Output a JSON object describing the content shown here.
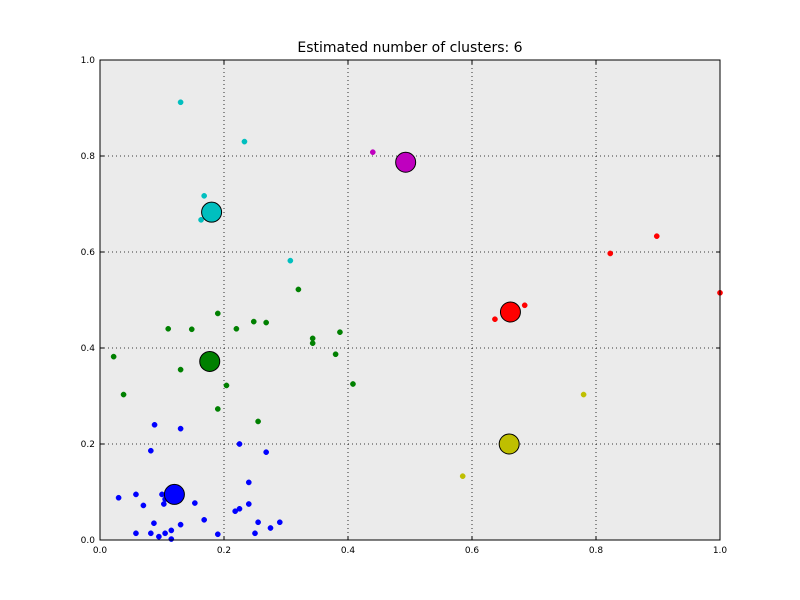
{
  "chart_data": {
    "type": "scatter",
    "title": "Estimated number of clusters: 6",
    "xlabel": "",
    "ylabel": "",
    "xlim": [
      0.0,
      1.0
    ],
    "ylim": [
      0.0,
      1.0
    ],
    "xticks": [
      "0.0",
      "0.2",
      "0.4",
      "0.6",
      "0.8",
      "1.0"
    ],
    "yticks": [
      "0.0",
      "0.2",
      "0.4",
      "0.6",
      "0.8",
      "1.0"
    ],
    "grid": true,
    "background": "#ebebeb",
    "clusters": [
      {
        "color": "#0000ff",
        "center": [
          0.12,
          0.095
        ],
        "points": [
          [
            0.03,
            0.088
          ],
          [
            0.058,
            0.095
          ],
          [
            0.07,
            0.072
          ],
          [
            0.058,
            0.014
          ],
          [
            0.082,
            0.014
          ],
          [
            0.087,
            0.035
          ],
          [
            0.095,
            0.007
          ],
          [
            0.1,
            0.095
          ],
          [
            0.103,
            0.075
          ],
          [
            0.105,
            0.085
          ],
          [
            0.105,
            0.014
          ],
          [
            0.115,
            0.02
          ],
          [
            0.115,
            0.002
          ],
          [
            0.13,
            0.032
          ],
          [
            0.153,
            0.077
          ],
          [
            0.168,
            0.042
          ],
          [
            0.19,
            0.012
          ],
          [
            0.218,
            0.06
          ],
          [
            0.225,
            0.065
          ],
          [
            0.24,
            0.075
          ],
          [
            0.24,
            0.12
          ],
          [
            0.25,
            0.014
          ],
          [
            0.255,
            0.037
          ],
          [
            0.275,
            0.025
          ],
          [
            0.29,
            0.037
          ],
          [
            0.088,
            0.24
          ],
          [
            0.13,
            0.232
          ],
          [
            0.225,
            0.2
          ],
          [
            0.268,
            0.183
          ],
          [
            0.082,
            0.186
          ]
        ]
      },
      {
        "color": "#008000",
        "center": [
          0.177,
          0.372
        ],
        "points": [
          [
            0.022,
            0.382
          ],
          [
            0.038,
            0.303
          ],
          [
            0.11,
            0.44
          ],
          [
            0.13,
            0.355
          ],
          [
            0.148,
            0.439
          ],
          [
            0.19,
            0.472
          ],
          [
            0.19,
            0.273
          ],
          [
            0.204,
            0.322
          ],
          [
            0.22,
            0.44
          ],
          [
            0.248,
            0.455
          ],
          [
            0.255,
            0.247
          ],
          [
            0.268,
            0.453
          ],
          [
            0.32,
            0.522
          ],
          [
            0.343,
            0.41
          ],
          [
            0.343,
            0.42
          ],
          [
            0.38,
            0.387
          ],
          [
            0.387,
            0.433
          ],
          [
            0.408,
            0.325
          ]
        ]
      },
      {
        "color": "#00bfbf",
        "center": [
          0.18,
          0.683
        ],
        "points": [
          [
            0.13,
            0.912
          ],
          [
            0.233,
            0.83
          ],
          [
            0.168,
            0.717
          ],
          [
            0.163,
            0.667
          ],
          [
            0.307,
            0.582
          ]
        ]
      },
      {
        "color": "#bf00bf",
        "center": [
          0.493,
          0.787
        ],
        "points": [
          [
            0.44,
            0.808
          ]
        ]
      },
      {
        "color": "#ff0000",
        "center": [
          0.662,
          0.475
        ],
        "points": [
          [
            0.637,
            0.46
          ],
          [
            0.685,
            0.489
          ],
          [
            0.823,
            0.597
          ],
          [
            0.898,
            0.633
          ],
          [
            1.0,
            0.515
          ]
        ]
      },
      {
        "color": "#bfbf00",
        "center": [
          0.66,
          0.2
        ],
        "points": [
          [
            0.585,
            0.133
          ],
          [
            0.78,
            0.303
          ]
        ]
      }
    ]
  }
}
